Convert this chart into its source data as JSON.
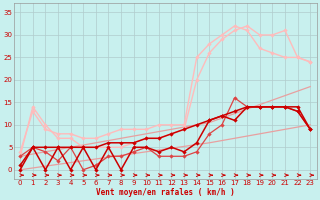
{
  "x": [
    0,
    1,
    2,
    3,
    4,
    5,
    6,
    7,
    8,
    9,
    10,
    11,
    12,
    13,
    14,
    15,
    16,
    17,
    18,
    19,
    20,
    21,
    22,
    23
  ],
  "lines": {
    "pale_linear_low": [
      0,
      0.4,
      0.8,
      1.2,
      1.6,
      2.0,
      2.4,
      2.8,
      3.2,
      3.6,
      4.0,
      4.4,
      4.8,
      5.2,
      5.6,
      6.0,
      6.5,
      7.0,
      7.5,
      8.0,
      8.5,
      9.0,
      9.5,
      10.0
    ],
    "pale_linear_high": [
      3,
      3.5,
      4.0,
      4.5,
      5.0,
      5.5,
      6.0,
      6.5,
      7.0,
      7.5,
      8.0,
      8.5,
      9.0,
      9.5,
      10.0,
      10.5,
      11.5,
      12.5,
      13.5,
      14.5,
      15.5,
      16.5,
      17.5,
      18.5
    ],
    "pink_curved_low": [
      3,
      14,
      10,
      7,
      7,
      5,
      5,
      5,
      5,
      6,
      7,
      7,
      8,
      9,
      20,
      26,
      29,
      31,
      32,
      30,
      30,
      31,
      25,
      24
    ],
    "pink_curved_high": [
      4,
      13,
      9,
      8,
      8,
      7,
      7,
      8,
      9,
      9,
      9,
      10,
      10,
      10,
      25,
      28,
      30,
      32,
      31,
      27,
      26,
      25,
      25,
      24
    ],
    "dark_smooth": [
      0,
      5,
      5,
      5,
      5,
      5,
      5,
      6,
      6,
      6,
      7,
      7,
      8,
      9,
      10,
      11,
      12,
      13,
      14,
      14,
      14,
      14,
      13,
      9
    ],
    "dark_zigzag": [
      1,
      5,
      0,
      5,
      0,
      5,
      0,
      5,
      0,
      5,
      5,
      4,
      5,
      4,
      6,
      11,
      12,
      11,
      14,
      14,
      14,
      14,
      14,
      9
    ],
    "med_zigzag": [
      3,
      5,
      4,
      2,
      5,
      0,
      1,
      3,
      3,
      4,
      5,
      3,
      3,
      3,
      4,
      8,
      10,
      16,
      14,
      14,
      14,
      14,
      13,
      9
    ]
  },
  "colors": {
    "pale_linear_low": "#e8a0a0",
    "pale_linear_high": "#e8a0a0",
    "pink_curved_low": "#ffbbbb",
    "pink_curved_high": "#ffbbbb",
    "dark_smooth": "#cc0000",
    "dark_zigzag": "#cc0000",
    "med_zigzag": "#dd4444"
  },
  "markers": {
    "pale_linear_low": false,
    "pale_linear_high": false,
    "pink_curved_low": true,
    "pink_curved_high": true,
    "dark_smooth": true,
    "dark_zigzag": true,
    "med_zigzag": true
  },
  "bg_color": "#c8f0ee",
  "grid_color": "#b0cccc",
  "xlabel": "Vent moyen/en rafales ( km/h )",
  "ylim": [
    -2,
    37
  ],
  "xlim": [
    -0.5,
    23.5
  ],
  "yticks": [
    0,
    5,
    10,
    15,
    20,
    25,
    30,
    35
  ],
  "xticks": [
    0,
    1,
    2,
    3,
    4,
    5,
    6,
    7,
    8,
    9,
    10,
    11,
    12,
    13,
    14,
    15,
    16,
    17,
    18,
    19,
    20,
    21,
    22,
    23
  ]
}
